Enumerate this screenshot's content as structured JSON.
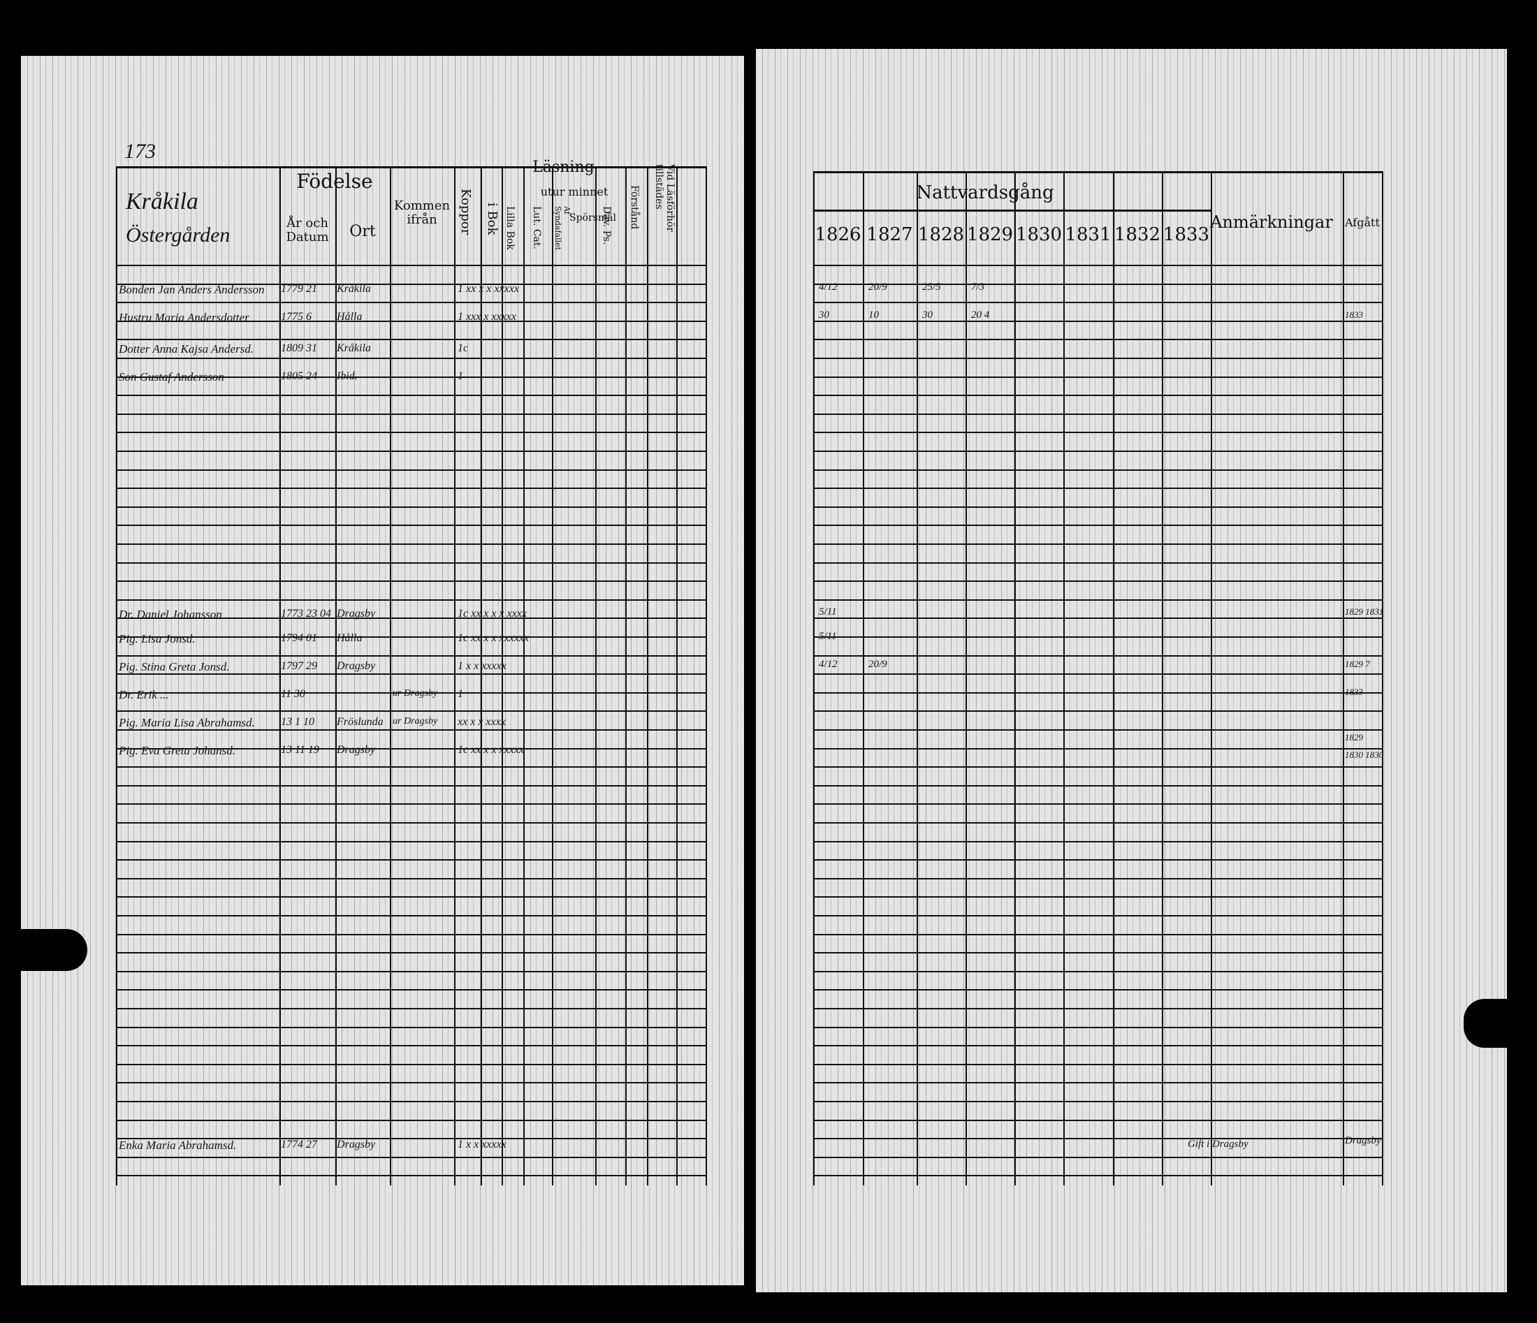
{
  "left_page": {
    "page_number": "173",
    "village": "Kråkila",
    "farm": "Östergården",
    "headers": {
      "birth": "Födelse",
      "year_date": "År och Datum",
      "place": "Ort",
      "came_from": "Kommen ifrån",
      "smallpox": "Koppor",
      "reading": "Läsning",
      "by_heart": "utur minnet",
      "in_book": "i Bok",
      "small_book": "Lilla Bok",
      "lut_cat": "Lut. Cat.",
      "a_synd": "Af Syndafallet",
      "questions": "Spörsmål",
      "david": "Dav. Ps.",
      "understanding": "Förstånd",
      "communion": "Vid Läsförhör tillstädes"
    },
    "rows": [
      {
        "name": "Bonden Jan Anders Andersson",
        "date": "1779 21",
        "place": "Kråkila",
        "marks": "1  xx x x  xxxxx"
      },
      {
        "name": "Hustru Maria Andersdotter",
        "date": "1775 6",
        "place": "Hålla",
        "marks": "1  xxx x  xxxxx"
      },
      {
        "name": "Dotter Anna Kajsa Andersd.",
        "date": "1809 31",
        "place": "Kråkila",
        "marks": "1c"
      },
      {
        "name": "Son Gustaf Andersson",
        "date": "1805 24",
        "place": "Ibid.",
        "marks": "1"
      },
      {
        "name": "Dr. Daniel Johansson",
        "date": "1773 23 04",
        "place": "Dragsby",
        "marks": "1c xx x x  x xxxx"
      },
      {
        "name": "Pig. Lisa Jonsd.",
        "date": "1794 01",
        "place": "Hålla",
        "marks": "1c xx x x xxxxxx"
      },
      {
        "name": "Pig. Stina Greta Jonsd.",
        "date": "1797 29",
        "place": "Dragsby",
        "marks": "1  x x  xxxxx"
      },
      {
        "name": "Dr. Erik ...",
        "date": "11 30",
        "place": "",
        "came_from": "ur Dragsby",
        "marks": "1"
      },
      {
        "name": "Pig. Maria Lisa Abrahamsd.",
        "date": "13 1 10",
        "place": "Fröslunda",
        "came_from": "ur Dragsby",
        "marks": "xx x x  xxxx"
      },
      {
        "name": "Pig. Eva Greta Johansd.",
        "date": "13 11 19",
        "place": "Dragsby",
        "marks": "1c xx x x  xxxxx"
      }
    ],
    "bottom_row": {
      "name": "Enka Maria Abrahamsd.",
      "date": "1774 27",
      "place": "Dragsby",
      "marks": "1 x x  xxxxx"
    }
  },
  "right_page": {
    "communion_header": "Nattvardsgång",
    "years": [
      "1826",
      "1827",
      "1828",
      "1829",
      "1830",
      "1831",
      "1832",
      "1833"
    ],
    "remarks_header": "Anmärkningar",
    "departed_header": "Afgått",
    "row_entries": [
      {
        "cells": [
          "4/12",
          "20/9",
          "25/5",
          "7/3"
        ],
        "departed": ""
      },
      {
        "cells": [
          "30",
          "10",
          "30",
          "20 4"
        ],
        "departed": "1833"
      },
      {
        "cells": [
          "5/11"
        ],
        "departed": "1829 1831"
      },
      {
        "cells": [
          "5/11"
        ],
        "departed": ""
      },
      {
        "cells": [
          "4/12",
          "20/9"
        ],
        "departed": "1829 7"
      },
      {
        "cells": [],
        "departed": "1833"
      },
      {
        "cells": [],
        "departed": "1829"
      },
      {
        "cells": [],
        "departed": "1830 1830"
      }
    ],
    "bottom_remark": "Gift i Dragsby",
    "bottom_departed": "Dragsby"
  }
}
